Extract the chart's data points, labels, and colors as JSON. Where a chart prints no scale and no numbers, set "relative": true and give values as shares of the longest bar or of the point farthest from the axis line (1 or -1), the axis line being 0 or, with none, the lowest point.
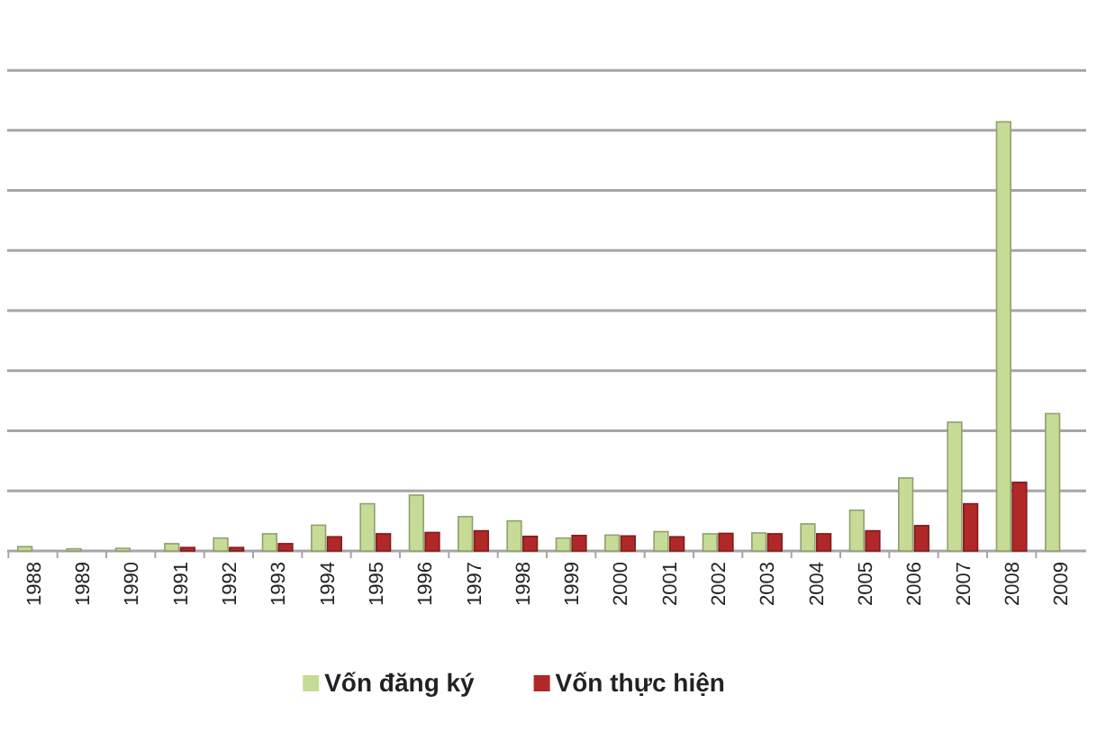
{
  "chart_data": {
    "type": "bar",
    "relative": true,
    "categories": [
      "1988",
      "1989",
      "1990",
      "1991",
      "1992",
      "1993",
      "1994",
      "1995",
      "1996",
      "1997",
      "1998",
      "1999",
      "2000",
      "2001",
      "2002",
      "2003",
      "2004",
      "2005",
      "2006",
      "2007",
      "2008",
      "2009"
    ],
    "series": [
      {
        "name": "Vốn đăng ký",
        "color": "#c6dc96",
        "values": [
          0.01,
          0.005,
          0.006,
          0.017,
          0.03,
          0.04,
          0.06,
          0.11,
          0.13,
          0.08,
          0.07,
          0.03,
          0.037,
          0.045,
          0.04,
          0.042,
          0.063,
          0.095,
          0.17,
          0.3,
          1,
          0.32
        ]
      },
      {
        "name": "Vốn thực hiện",
        "color": "#b02828",
        "values": [
          0,
          0,
          0,
          0.008,
          0.008,
          0.017,
          0.033,
          0.04,
          0.043,
          0.047,
          0.034,
          0.036,
          0.035,
          0.033,
          0.041,
          0.04,
          0.04,
          0.047,
          0.059,
          0.11,
          0.16,
          null
        ]
      }
    ],
    "grid": "y",
    "legend": "bottom"
  }
}
